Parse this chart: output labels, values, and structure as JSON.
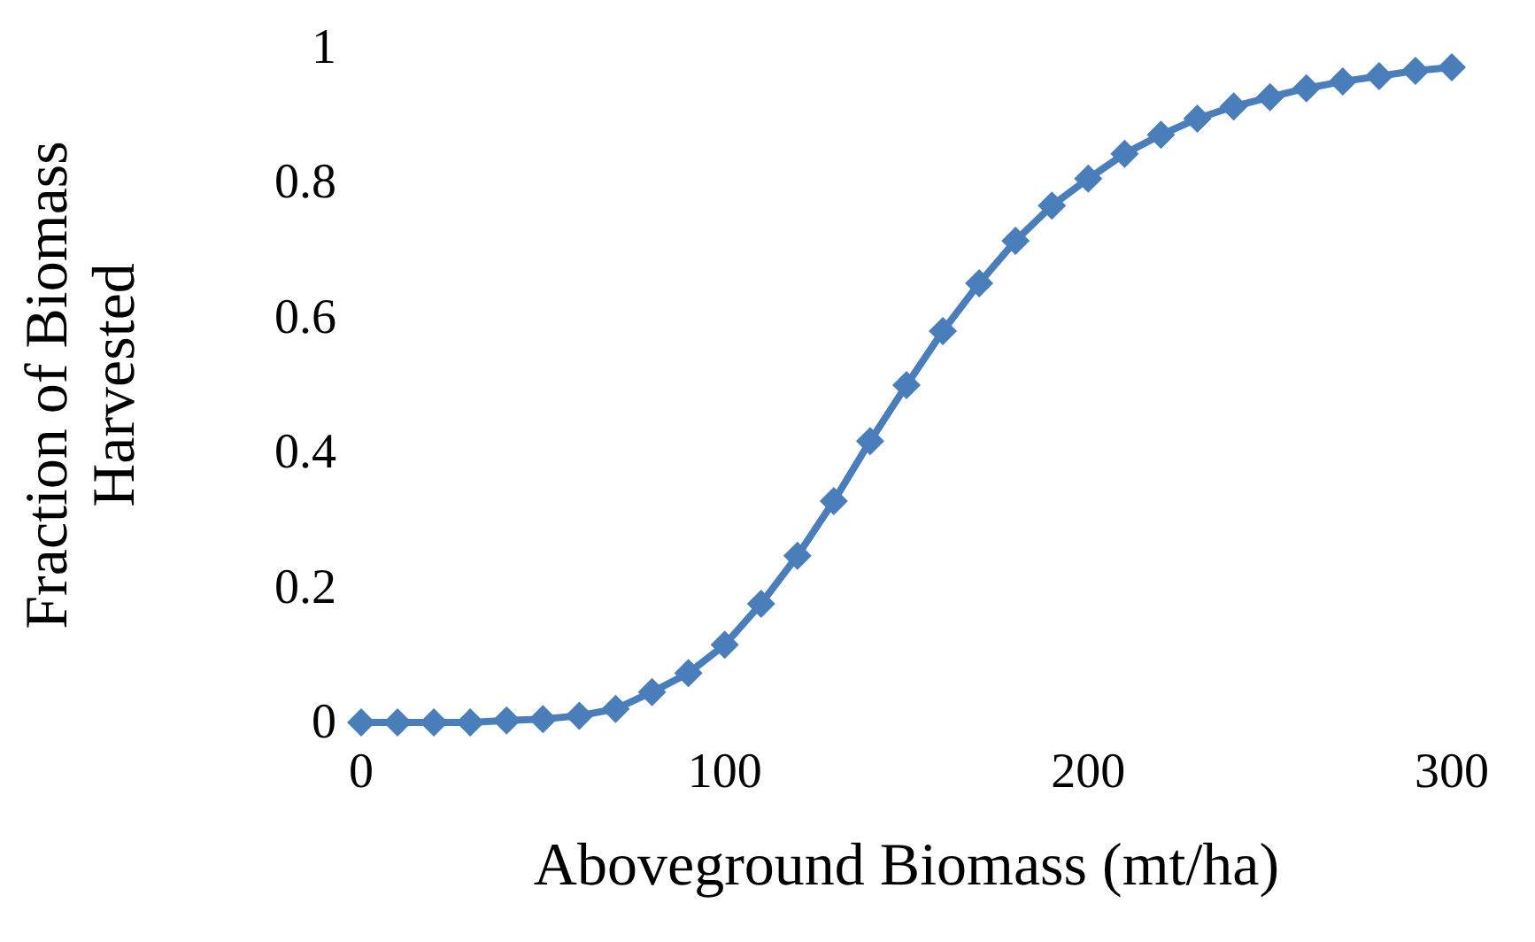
{
  "chart_data": {
    "type": "line",
    "xlabel": "Aboveground Biomass (mt/ha)",
    "ylabel": "Fraction of Biomass Harvested",
    "x": [
      0,
      10,
      20,
      30,
      40,
      50,
      60,
      70,
      80,
      90,
      100,
      110,
      120,
      130,
      140,
      150,
      160,
      170,
      180,
      190,
      200,
      210,
      220,
      230,
      240,
      250,
      260,
      270,
      280,
      290,
      300
    ],
    "series": [
      {
        "color": "#4a7ebb",
        "values": [
          0,
          0,
          0,
          0,
          0.003,
          0.005,
          0.01,
          0.02,
          0.045,
          0.073,
          0.115,
          0.176,
          0.247,
          0.328,
          0.417,
          0.5,
          0.58,
          0.651,
          0.714,
          0.766,
          0.806,
          0.843,
          0.871,
          0.895,
          0.913,
          0.927,
          0.94,
          0.95,
          0.958,
          0.966,
          0.971
        ]
      }
    ],
    "xlim": [
      0,
      300
    ],
    "xticks": [
      0,
      100,
      200,
      300
    ],
    "ylim": [
      0,
      1
    ],
    "yticks": [
      0,
      0.2,
      0.4,
      0.6,
      0.8,
      1
    ],
    "grid": false,
    "marker": "diamond",
    "line_style": "solid"
  }
}
